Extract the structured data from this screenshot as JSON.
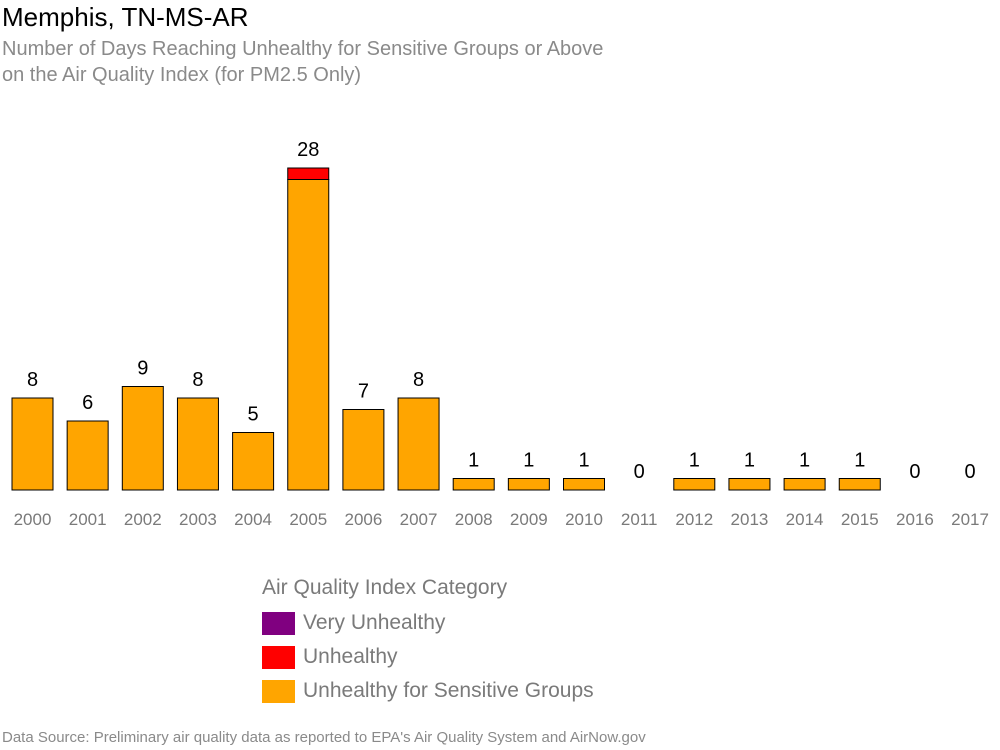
{
  "header": {
    "title": "Memphis, TN-MS-AR",
    "subtitle_line1": "Number of Days Reaching Unhealthy for Sensitive Groups or Above",
    "subtitle_line2": "on the Air Quality Index (for PM2.5 Only)"
  },
  "chart_data": {
    "type": "bar",
    "stacked": true,
    "categories": [
      "2000",
      "2001",
      "2002",
      "2003",
      "2004",
      "2005",
      "2006",
      "2007",
      "2008",
      "2009",
      "2010",
      "2011",
      "2012",
      "2013",
      "2014",
      "2015",
      "2016",
      "2017"
    ],
    "series": [
      {
        "name": "Unhealthy for Sensitive Groups",
        "color": "#FFA500",
        "values": [
          8,
          6,
          9,
          8,
          5,
          27,
          7,
          8,
          1,
          1,
          1,
          0,
          1,
          1,
          1,
          1,
          0,
          0
        ]
      },
      {
        "name": "Unhealthy",
        "color": "#FF0000",
        "values": [
          0,
          0,
          0,
          0,
          0,
          1,
          0,
          0,
          0,
          0,
          0,
          0,
          0,
          0,
          0,
          0,
          0,
          0
        ]
      },
      {
        "name": "Very Unhealthy",
        "color": "#800080",
        "values": [
          0,
          0,
          0,
          0,
          0,
          0,
          0,
          0,
          0,
          0,
          0,
          0,
          0,
          0,
          0,
          0,
          0,
          0
        ]
      }
    ],
    "totals": [
      8,
      6,
      9,
      8,
      5,
      28,
      7,
      8,
      1,
      1,
      1,
      0,
      1,
      1,
      1,
      1,
      0,
      0
    ],
    "ylim": [
      0,
      28
    ],
    "grid": false
  },
  "legend": {
    "title": "Air Quality Index Category",
    "items": [
      {
        "label": "Very Unhealthy",
        "color": "#800080"
      },
      {
        "label": "Unhealthy",
        "color": "#FF0000"
      },
      {
        "label": "Unhealthy for Sensitive Groups",
        "color": "#FFA500"
      }
    ]
  },
  "footer": {
    "source": "Data Source: Preliminary air quality data as reported to EPA's Air Quality System and AirNow.gov"
  }
}
